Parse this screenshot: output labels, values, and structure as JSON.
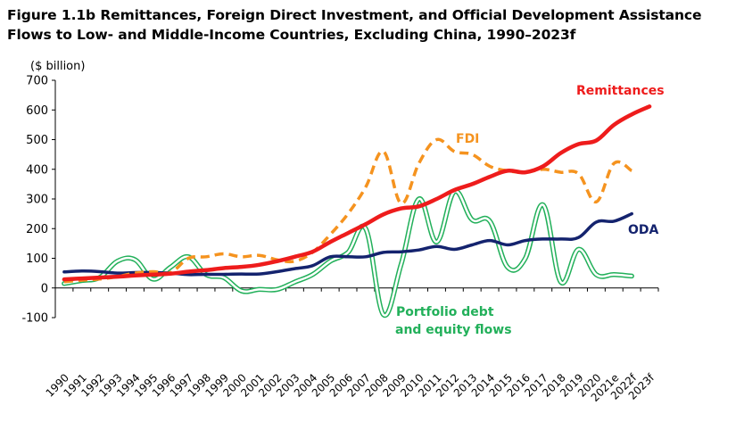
{
  "chart_data": {
    "type": "line",
    "title": "Figure 1.1b Remittances, Foreign Direct Investment, and Official Development Assistance Flows to Low- and Middle-Income Countries, Excluding China, 1990–2023f",
    "ylabel": "($ billion)",
    "xlabel": "",
    "ylim": [
      -100,
      700
    ],
    "yticks": [
      -100,
      0,
      100,
      200,
      300,
      400,
      500,
      600,
      700
    ],
    "categories": [
      "1990",
      "1991",
      "1992",
      "1993",
      "1994",
      "1995",
      "1996",
      "1997",
      "1998",
      "1999",
      "2000",
      "2001",
      "2002",
      "2003",
      "2004",
      "2005",
      "2006",
      "2007",
      "2008",
      "2009",
      "2010",
      "2011",
      "2012",
      "2013",
      "2014",
      "2015",
      "2016",
      "2017",
      "2018",
      "2019",
      "2020",
      "2021e",
      "2022f",
      "2023f"
    ],
    "series": [
      {
        "name": "Remittances",
        "label_lines": [
          "Remittances"
        ],
        "color": "#ee1c1c",
        "dash": "solid",
        "values": [
          29,
          32,
          35,
          38,
          42,
          45,
          48,
          55,
          60,
          67,
          71,
          78,
          90,
          105,
          122,
          155,
          185,
          215,
          248,
          268,
          275,
          300,
          330,
          350,
          375,
          395,
          390,
          410,
          455,
          485,
          497,
          550,
          585,
          612
        ]
      },
      {
        "name": "FDI",
        "label_lines": [
          "FDI"
        ],
        "color": "#f5931f",
        "dash": "dash",
        "values": [
          21,
          26,
          30,
          38,
          50,
          55,
          52,
          100,
          105,
          115,
          105,
          110,
          95,
          90,
          120,
          180,
          250,
          340,
          460,
          285,
          420,
          500,
          460,
          450,
          410,
          395,
          390,
          400,
          390,
          385,
          290,
          420,
          395,
          null
        ]
      },
      {
        "name": "ODA",
        "label_lines": [
          "ODA"
        ],
        "color": "#14236e",
        "dash": "solid",
        "values": [
          54,
          57,
          55,
          50,
          52,
          52,
          50,
          45,
          46,
          46,
          47,
          47,
          55,
          65,
          75,
          105,
          105,
          105,
          120,
          122,
          128,
          140,
          130,
          145,
          160,
          145,
          160,
          165,
          165,
          170,
          222,
          225,
          250,
          null
        ]
      },
      {
        "name": "Portfolio debt and equity flows",
        "label_lines": [
          "Portfolio debt",
          "and equity flows"
        ],
        "color": "#22b05a",
        "dash": "double",
        "values": [
          15,
          25,
          35,
          90,
          95,
          30,
          70,
          105,
          45,
          35,
          -10,
          -5,
          -5,
          20,
          45,
          90,
          120,
          200,
          -90,
          80,
          300,
          155,
          325,
          230,
          225,
          70,
          100,
          280,
          20,
          130,
          45,
          45,
          40,
          null
        ]
      }
    ]
  }
}
